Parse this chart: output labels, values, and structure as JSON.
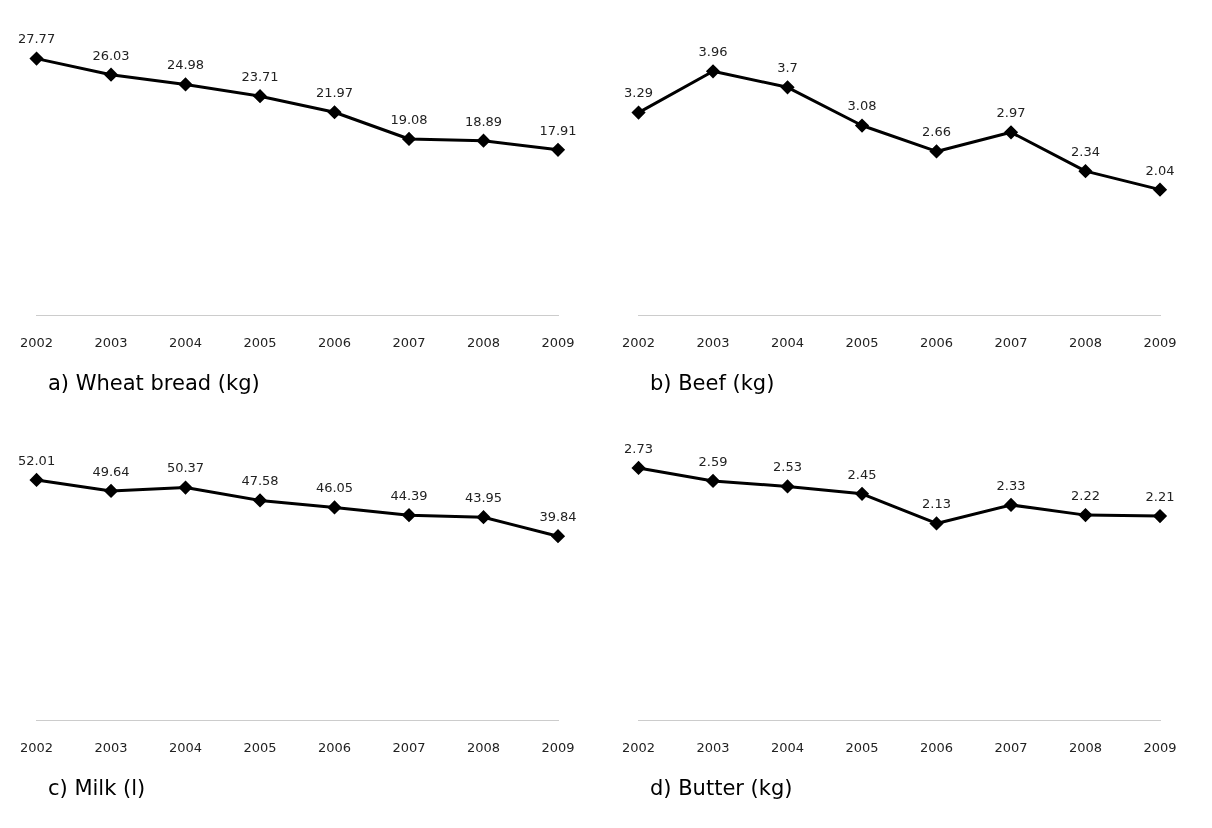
{
  "chart_data": [
    {
      "type": "line",
      "title": "a)  Wheat bread (kg)",
      "categories": [
        "2002",
        "2003",
        "2004",
        "2005",
        "2006",
        "2007",
        "2008",
        "2009"
      ],
      "values": [
        27.77,
        26.03,
        24.98,
        23.71,
        21.97,
        19.08,
        18.89,
        17.91
      ],
      "color": "#000000",
      "marker": "diamond",
      "data_labels": true
    },
    {
      "type": "line",
      "title": "b)  Beef (kg)",
      "categories": [
        "2002",
        "2003",
        "2004",
        "2005",
        "2006",
        "2007",
        "2008",
        "2009"
      ],
      "values": [
        3.29,
        3.96,
        3.7,
        3.08,
        2.66,
        2.97,
        2.34,
        2.04
      ],
      "color": "#000000",
      "marker": "diamond",
      "data_labels": true
    },
    {
      "type": "line",
      "title": "c)  Milk (l)",
      "categories": [
        "2002",
        "2003",
        "2004",
        "2005",
        "2006",
        "2007",
        "2008",
        "2009"
      ],
      "values": [
        52.01,
        49.64,
        50.37,
        47.58,
        46.05,
        44.39,
        43.95,
        39.84
      ],
      "color": "#000000",
      "marker": "diamond",
      "data_labels": true
    },
    {
      "type": "line",
      "title": "d)  Butter (kg)",
      "categories": [
        "2002",
        "2003",
        "2004",
        "2005",
        "2006",
        "2007",
        "2008",
        "2009"
      ],
      "values": [
        2.73,
        2.59,
        2.53,
        2.45,
        2.13,
        2.33,
        2.22,
        2.21
      ],
      "color": "#000000",
      "marker": "diamond",
      "data_labels": true
    }
  ]
}
